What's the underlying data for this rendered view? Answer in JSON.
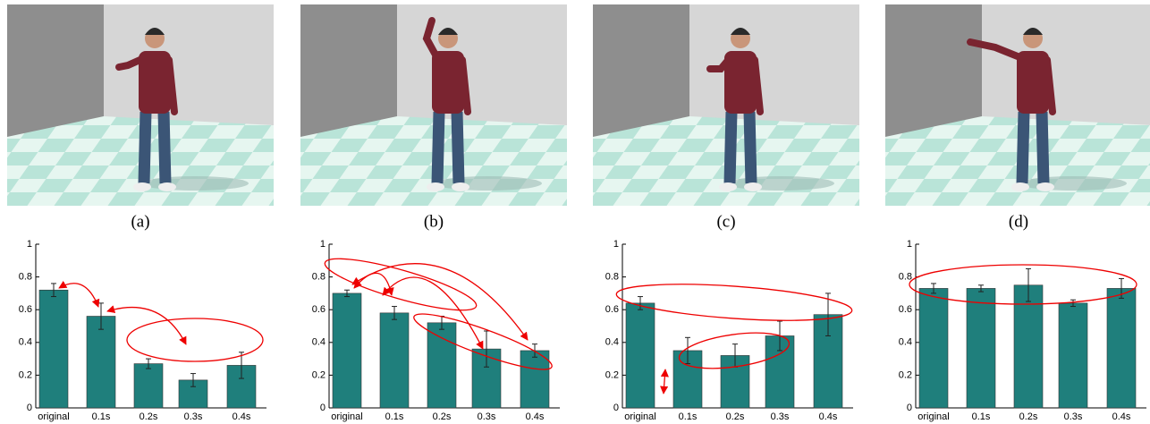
{
  "captions": [
    "(a)",
    "(b)",
    "(c)",
    "(d)"
  ],
  "chart_data": [
    {
      "type": "bar",
      "categories": [
        "original",
        "0.1s",
        "0.2s",
        "0.3s",
        "0.4s"
      ],
      "color": "#1f7f7c",
      "values": [
        0.72,
        0.56,
        0.27,
        0.17,
        0.26
      ],
      "errors": [
        0.04,
        0.08,
        0.03,
        0.04,
        0.08
      ],
      "ylim": [
        0,
        1
      ],
      "yticks": [
        0,
        0.2,
        0.4,
        0.6,
        0.8,
        1
      ]
    },
    {
      "type": "bar",
      "categories": [
        "original",
        "0.1s",
        "0.2s",
        "0.3s",
        "0.4s"
      ],
      "color": "#1f7f7c",
      "values": [
        0.7,
        0.58,
        0.52,
        0.36,
        0.35
      ],
      "errors": [
        0.02,
        0.04,
        0.04,
        0.11,
        0.04
      ],
      "ylim": [
        0,
        1
      ],
      "yticks": [
        0,
        0.2,
        0.4,
        0.6,
        0.8,
        1
      ]
    },
    {
      "type": "bar",
      "categories": [
        "original",
        "0.1s",
        "0.2s",
        "0.3s",
        "0.4s"
      ],
      "color": "#1f7f7c",
      "values": [
        0.64,
        0.35,
        0.32,
        0.44,
        0.57
      ],
      "errors": [
        0.04,
        0.08,
        0.07,
        0.09,
        0.13
      ],
      "ylim": [
        0,
        1
      ],
      "yticks": [
        0,
        0.2,
        0.4,
        0.6,
        0.8,
        1
      ]
    },
    {
      "type": "bar",
      "categories": [
        "original",
        "0.1s",
        "0.2s",
        "0.3s",
        "0.4s"
      ],
      "color": "#1f7f7c",
      "values": [
        0.73,
        0.73,
        0.75,
        0.64,
        0.73
      ],
      "errors": [
        0.03,
        0.02,
        0.1,
        0.02,
        0.06
      ],
      "ylim": [
        0,
        1
      ],
      "yticks": [
        0,
        0.2,
        0.4,
        0.6,
        0.8,
        1
      ]
    }
  ]
}
